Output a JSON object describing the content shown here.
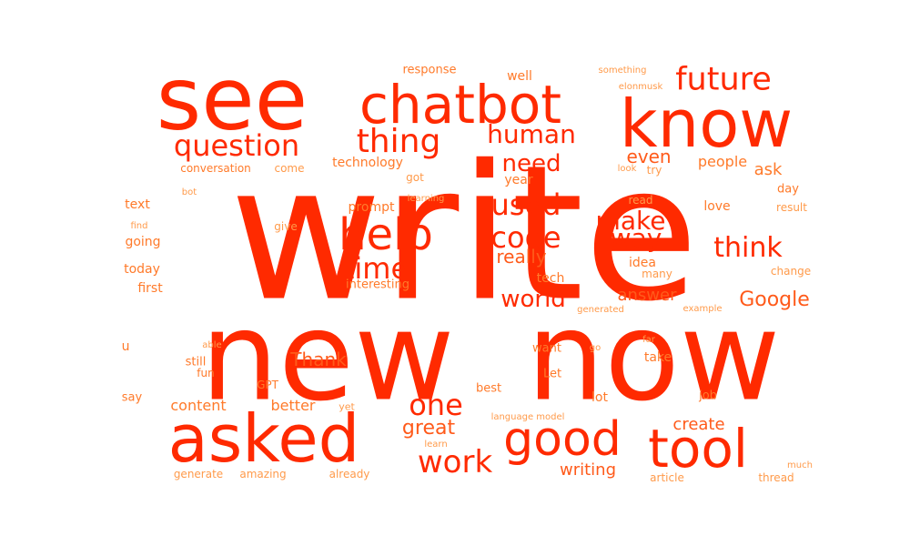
{
  "colors": {
    "primary": "#ff2a00",
    "secondary": "#ff5a1a",
    "tertiary": "#ff7a2a",
    "minor": "#ff9a4a",
    "faint": "#ffb36b",
    "background": "#ffffff"
  },
  "words": [
    {
      "text": "write",
      "weight": 1.0
    },
    {
      "text": "new",
      "weight": 0.84
    },
    {
      "text": "now",
      "weight": 0.84
    },
    {
      "text": "see",
      "weight": 0.6
    },
    {
      "text": "asked",
      "weight": 0.5
    },
    {
      "text": "know",
      "weight": 0.5
    },
    {
      "text": "chatbot",
      "weight": 0.4
    },
    {
      "text": "good",
      "weight": 0.37
    },
    {
      "text": "tool",
      "weight": 0.37
    },
    {
      "text": "help",
      "weight": 0.3
    },
    {
      "text": "future",
      "weight": 0.23
    },
    {
      "text": "question",
      "weight": 0.21
    },
    {
      "text": "thing",
      "weight": 0.21
    },
    {
      "text": "human",
      "weight": 0.18
    },
    {
      "text": "work",
      "weight": 0.21
    },
    {
      "text": "one",
      "weight": 0.2
    },
    {
      "text": "think",
      "weight": 0.2
    },
    {
      "text": "code",
      "weight": 0.2
    },
    {
      "text": "used",
      "weight": 0.2
    },
    {
      "text": "time",
      "weight": 0.2
    },
    {
      "text": "way",
      "weight": 0.17
    },
    {
      "text": "make",
      "weight": 0.17
    },
    {
      "text": "need",
      "weight": 0.17
    },
    {
      "text": "world",
      "weight": 0.16
    },
    {
      "text": "Google",
      "weight": 0.15
    },
    {
      "text": "great",
      "weight": 0.13
    },
    {
      "text": "really",
      "weight": 0.13
    },
    {
      "text": "even",
      "weight": 0.12
    },
    {
      "text": "answer",
      "weight": 0.12
    },
    {
      "text": "create",
      "weight": 0.12
    },
    {
      "text": "writing",
      "weight": 0.12
    },
    {
      "text": "Thank",
      "weight": 0.12
    },
    {
      "text": "content",
      "weight": 0.1
    },
    {
      "text": "better",
      "weight": 0.1
    },
    {
      "text": "people",
      "weight": 0.1
    },
    {
      "text": "ask",
      "weight": 0.1
    },
    {
      "text": "technology",
      "weight": 0.08
    },
    {
      "text": "conversation",
      "weight": 0.07
    },
    {
      "text": "response",
      "weight": 0.07
    },
    {
      "text": "well",
      "weight": 0.08
    },
    {
      "text": "something",
      "weight": 0.06
    },
    {
      "text": "elonmusk",
      "weight": 0.06
    },
    {
      "text": "text",
      "weight": 0.08
    },
    {
      "text": "going",
      "weight": 0.08
    },
    {
      "text": "today",
      "weight": 0.08
    },
    {
      "text": "first",
      "weight": 0.09
    },
    {
      "text": "u",
      "weight": 0.08
    },
    {
      "text": "say",
      "weight": 0.07
    },
    {
      "text": "still",
      "weight": 0.08
    },
    {
      "text": "fun",
      "weight": 0.07
    },
    {
      "text": "able",
      "weight": 0.05
    },
    {
      "text": "GPT",
      "weight": 0.07
    },
    {
      "text": "yet",
      "weight": 0.06
    },
    {
      "text": "best",
      "weight": 0.07
    },
    {
      "text": "Let",
      "weight": 0.07
    },
    {
      "text": "lot",
      "weight": 0.08
    },
    {
      "text": "job",
      "weight": 0.07
    },
    {
      "text": "take",
      "weight": 0.08
    },
    {
      "text": "want",
      "weight": 0.07
    },
    {
      "text": "go",
      "weight": 0.06
    },
    {
      "text": "far",
      "weight": 0.06
    },
    {
      "text": "tech",
      "weight": 0.08
    },
    {
      "text": "idea",
      "weight": 0.08
    },
    {
      "text": "many",
      "weight": 0.07
    },
    {
      "text": "change",
      "weight": 0.06
    },
    {
      "text": "example",
      "weight": 0.05
    },
    {
      "text": "generated",
      "weight": 0.05
    },
    {
      "text": "interesting",
      "weight": 0.07
    },
    {
      "text": "prompt",
      "weight": 0.08
    },
    {
      "text": "year",
      "weight": 0.08
    },
    {
      "text": "got",
      "weight": 0.07
    },
    {
      "text": "come",
      "weight": 0.06
    },
    {
      "text": "bot",
      "weight": 0.05
    },
    {
      "text": "learning",
      "weight": 0.05
    },
    {
      "text": "find",
      "weight": 0.05
    },
    {
      "text": "give",
      "weight": 0.07
    },
    {
      "text": "read",
      "weight": 0.06
    },
    {
      "text": "love",
      "weight": 0.08
    },
    {
      "text": "day",
      "weight": 0.08
    },
    {
      "text": "result",
      "weight": 0.06
    },
    {
      "text": "look",
      "weight": 0.05
    },
    {
      "text": "try",
      "weight": 0.06
    },
    {
      "text": "language model",
      "weight": 0.05
    },
    {
      "text": "learn",
      "weight": 0.06
    },
    {
      "text": "generate",
      "weight": 0.07
    },
    {
      "text": "amazing",
      "weight": 0.07
    },
    {
      "text": "already",
      "weight": 0.06
    },
    {
      "text": "article",
      "weight": 0.06
    },
    {
      "text": "thread",
      "weight": 0.06
    },
    {
      "text": "much",
      "weight": 0.06
    }
  ]
}
